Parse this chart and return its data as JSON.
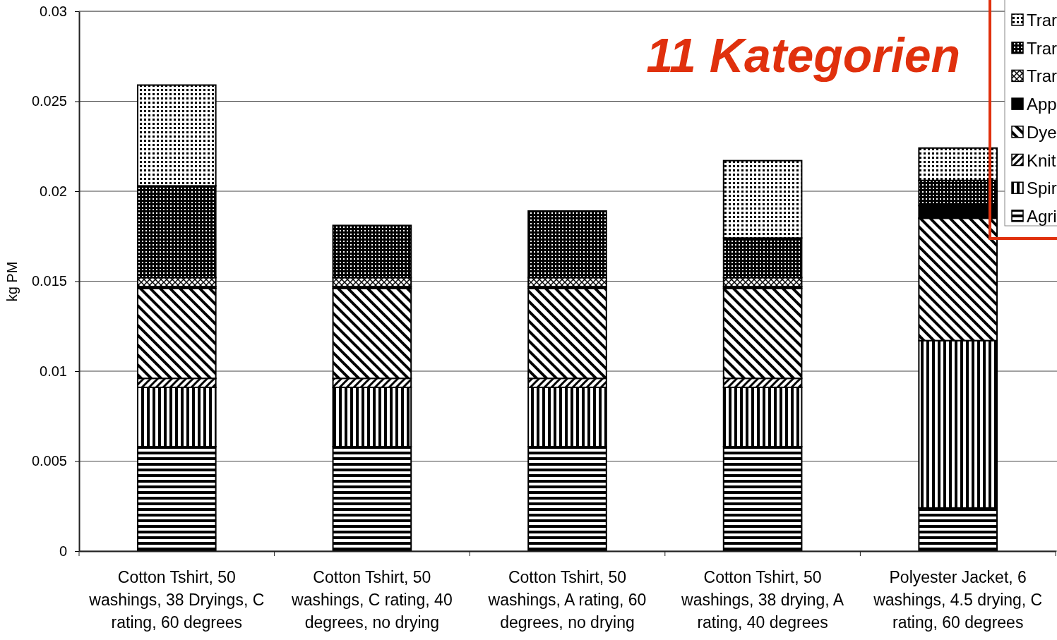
{
  "chart_data": {
    "type": "bar",
    "stacked": true,
    "title": "11 Kategorien",
    "ylabel": "kg PM",
    "categories": [
      "Cotton Tshirt, 50 washings, 38 Dryings, C rating, 60 degrees",
      "Cotton Tshirt, 50 washings, C rating, 40 degrees, no drying",
      "Cotton Tshirt, 50 washings, A rating, 60 degrees, no drying",
      "Cotton Tshirt, 50 washings, 38 drying, A rating, 40 degrees",
      "Polyester Jacket, 6 washings, 4.5 drying, C rating, 60 degrees"
    ],
    "series": [
      {
        "name": "Agri",
        "color": "#000000",
        "values": [
          0.0058,
          0.0058,
          0.0058,
          0.0058,
          0.0024
        ]
      },
      {
        "name": "Spir",
        "color": "#000000",
        "values": [
          0.0033,
          0.0033,
          0.0033,
          0.0033,
          0.0093
        ]
      },
      {
        "name": "Knit",
        "color": "#000000",
        "values": [
          0.0005,
          0.0005,
          0.0005,
          0.0005,
          0
        ]
      },
      {
        "name": "Dye",
        "color": "#000000",
        "values": [
          0.005,
          0.005,
          0.005,
          0.005,
          0.0068
        ]
      },
      {
        "name": "App",
        "color": "#000000",
        "values": [
          0.0001,
          0.0001,
          0.0001,
          0.0001,
          0.0007
        ]
      },
      {
        "name": "Trar",
        "color": "#000000",
        "values": [
          0.0005,
          0.0005,
          0.0005,
          0.0005,
          0
        ]
      },
      {
        "name": "Trar",
        "color": "#000000",
        "values": [
          0.0051,
          0.0029,
          0.0037,
          0.0022,
          0.0014
        ]
      },
      {
        "name": "Trar",
        "color": "#000000",
        "values": [
          0.0056,
          null,
          null,
          0.0043,
          0.0018
        ]
      }
    ],
    "ylim": [
      0,
      0.03
    ],
    "yticks": [
      0,
      0.005,
      0.01,
      0.015,
      0.02,
      0.025,
      0.03
    ],
    "grid": "y",
    "legend": "top right"
  }
}
